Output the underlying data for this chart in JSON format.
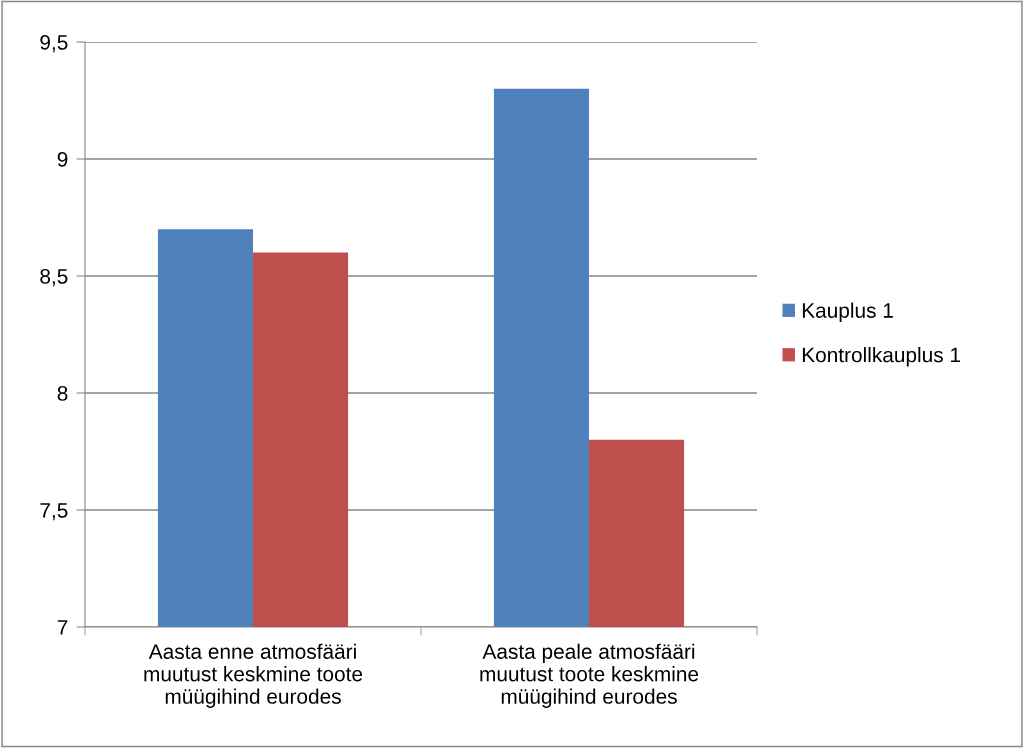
{
  "chart_data": {
    "type": "bar",
    "categories": [
      "Aasta enne atmosfääri\nmuutust keskmine toote\nmüügihind eurodes",
      "Aasta peale atmosfääri\nmuutust toote keskmine\nmüügihind eurodes"
    ],
    "series": [
      {
        "name": "Kauplus 1",
        "color": "#4f81bd",
        "values": [
          8.7,
          9.3
        ]
      },
      {
        "name": "Kontrollkauplus 1",
        "color": "#c0504d",
        "values": [
          8.6,
          7.8
        ]
      }
    ],
    "ylim": [
      7,
      9.5
    ],
    "yticks": [
      7,
      {
        "value": 7.5,
        "label": "7,5"
      },
      8,
      {
        "value": 8.5,
        "label": "8,5"
      },
      9,
      {
        "value": 9.5,
        "label": "9,5"
      }
    ],
    "grid": "y",
    "legend": "right"
  }
}
